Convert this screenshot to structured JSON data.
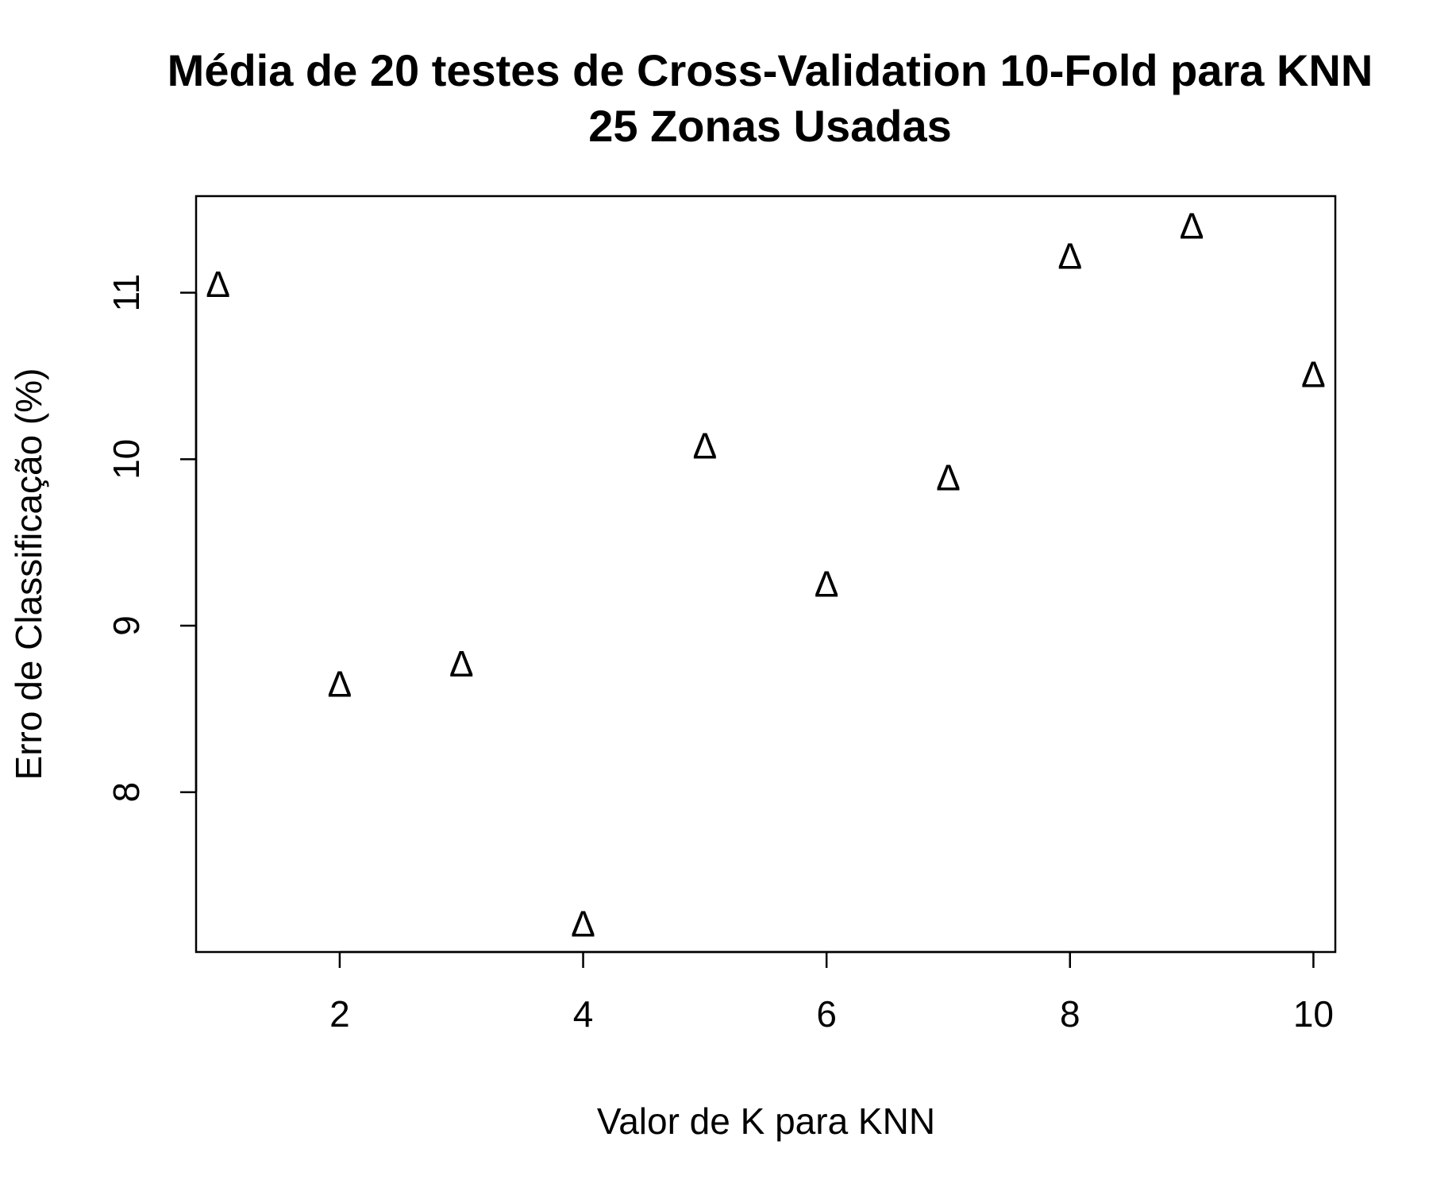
{
  "chart_data": {
    "type": "scatter",
    "title": "Média de 20 testes de Cross-Validation 10-Fold para KNN",
    "subtitle": "25 Zonas Usadas",
    "xlabel": "Valor de K para KNN",
    "ylabel": "Erro de Classificação (%)",
    "marker": "Δ",
    "xlim": [
      0.82,
      10.18
    ],
    "ylim": [
      7.04,
      11.58
    ],
    "x_ticks": [
      2,
      4,
      6,
      8,
      10
    ],
    "y_ticks": [
      8,
      9,
      10,
      11
    ],
    "grid": false,
    "legend": "none",
    "points": [
      {
        "x": 1,
        "y": 11.05
      },
      {
        "x": 2,
        "y": 8.65
      },
      {
        "x": 3,
        "y": 8.77
      },
      {
        "x": 4,
        "y": 7.21
      },
      {
        "x": 5,
        "y": 10.08
      },
      {
        "x": 6,
        "y": 9.25
      },
      {
        "x": 7,
        "y": 9.89
      },
      {
        "x": 8,
        "y": 11.22
      },
      {
        "x": 9,
        "y": 11.4
      },
      {
        "x": 10,
        "y": 10.51
      }
    ]
  }
}
